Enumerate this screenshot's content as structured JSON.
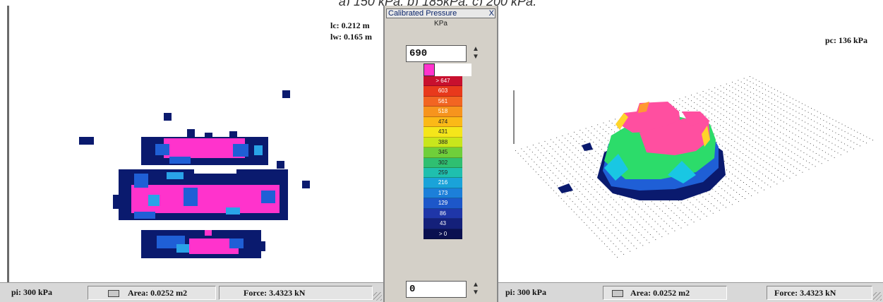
{
  "caption": "a) 150 kPa, b) 185kPa, c) 200 kPa,",
  "left_view": {
    "dims": [
      "lc: 0.212 m",
      "lw: 0.165 m"
    ],
    "status": {
      "pressure": "pi: 300 kPa",
      "area": "Area: 0.0252 m2",
      "force": "Force: 3.4323 kN"
    }
  },
  "palette": {
    "title": "Calibrated Pressure",
    "close": "X",
    "unit": "KPa",
    "max_value": "690",
    "min_value": "0",
    "spin_arrows": "⌃⌄",
    "scale": [
      {
        "label": "> 647",
        "color": "#c8102e"
      },
      {
        "label": "603",
        "color": "#e8391c"
      },
      {
        "label": "561",
        "color": "#f26522"
      },
      {
        "label": "518",
        "color": "#f7941d"
      },
      {
        "label": "474",
        "color": "#fbb917"
      },
      {
        "label": "431",
        "color": "#f5e61a"
      },
      {
        "label": "388",
        "color": "#c8e61c"
      },
      {
        "label": "345",
        "color": "#6fcf3a"
      },
      {
        "label": "302",
        "color": "#2fbf71"
      },
      {
        "label": "259",
        "color": "#1fbfae"
      },
      {
        "label": "216",
        "color": "#1aa3d9"
      },
      {
        "label": "173",
        "color": "#1c7fd9"
      },
      {
        "label": "129",
        "color": "#1d57c9"
      },
      {
        "label": "86",
        "color": "#1f36a8"
      },
      {
        "label": "43",
        "color": "#14207a"
      },
      {
        "label": "> 0",
        "color": "#0a1050"
      }
    ]
  },
  "right_view": {
    "pc": "pc: 136 kPa",
    "status": {
      "pressure": "pi: 300 kPa",
      "area": "Area: 0.0252 m2",
      "force": "Force: 3.4323 kN"
    }
  },
  "colors": {
    "navy": "#0a1a6e",
    "blue": "#1f5fd6",
    "cyan": "#29a3e8",
    "magenta": "#ff33cc",
    "green": "#2cdc6a",
    "pink": "#ff4fa0"
  }
}
